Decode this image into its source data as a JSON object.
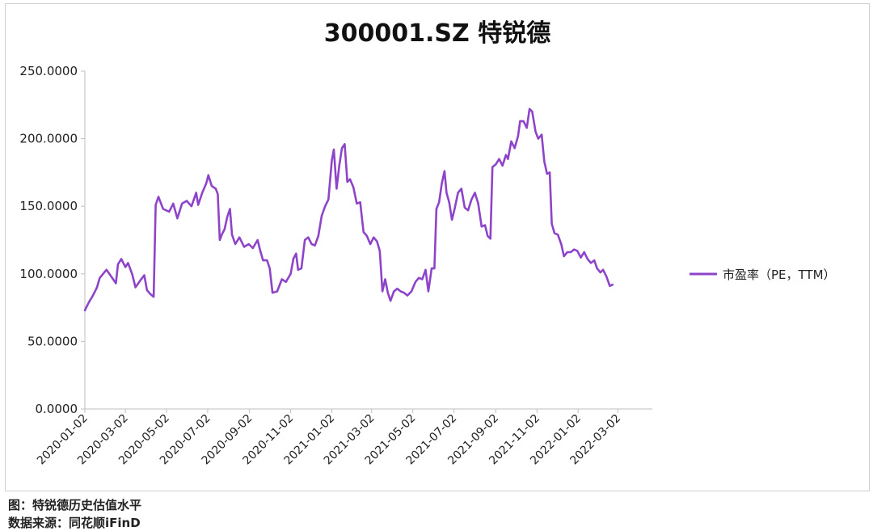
{
  "chart_data": {
    "type": "line",
    "title": "300001.SZ  特锐德",
    "ylim": [
      0,
      250
    ],
    "y_ticks": [
      "0.0000",
      "50.0000",
      "100.0000",
      "150.0000",
      "200.0000",
      "250.0000"
    ],
    "x_ticks": [
      "2020-01-02",
      "2020-03-02",
      "2020-05-02",
      "2020-07-02",
      "2020-09-02",
      "2020-11-02",
      "2021-01-02",
      "2021-03-02",
      "2021-05-02",
      "2021-07-02",
      "2021-09-02",
      "2021-11-02",
      "2022-01-02",
      "2022-03-02"
    ],
    "series": [
      {
        "name": "市盈率（PE，TTM）",
        "color": "#8e44c9",
        "points": [
          [
            "2020-01-02",
            73
          ],
          [
            "2020-01-08",
            79
          ],
          [
            "2020-01-14",
            84
          ],
          [
            "2020-01-20",
            90
          ],
          [
            "2020-01-24",
            97
          ],
          [
            "2020-02-03",
            103
          ],
          [
            "2020-02-10",
            98
          ],
          [
            "2020-02-17",
            93
          ],
          [
            "2020-02-20",
            107
          ],
          [
            "2020-02-25",
            111
          ],
          [
            "2020-03-02",
            105
          ],
          [
            "2020-03-06",
            108
          ],
          [
            "2020-03-12",
            100
          ],
          [
            "2020-03-17",
            90
          ],
          [
            "2020-03-24",
            95
          ],
          [
            "2020-03-30",
            99
          ],
          [
            "2020-04-03",
            88
          ],
          [
            "2020-04-08",
            85
          ],
          [
            "2020-04-13",
            83
          ],
          [
            "2020-04-16",
            151
          ],
          [
            "2020-04-20",
            157
          ],
          [
            "2020-04-27",
            148
          ],
          [
            "2020-05-06",
            146
          ],
          [
            "2020-05-12",
            152
          ],
          [
            "2020-05-18",
            141
          ],
          [
            "2020-05-25",
            152
          ],
          [
            "2020-06-01",
            154
          ],
          [
            "2020-06-08",
            150
          ],
          [
            "2020-06-15",
            160
          ],
          [
            "2020-06-18",
            151
          ],
          [
            "2020-06-24",
            160
          ],
          [
            "2020-06-30",
            167
          ],
          [
            "2020-07-03",
            173
          ],
          [
            "2020-07-08",
            165
          ],
          [
            "2020-07-14",
            163
          ],
          [
            "2020-07-17",
            159
          ],
          [
            "2020-07-20",
            125
          ],
          [
            "2020-07-23",
            129
          ],
          [
            "2020-07-27",
            133
          ],
          [
            "2020-07-31",
            142
          ],
          [
            "2020-08-04",
            148
          ],
          [
            "2020-08-07",
            129
          ],
          [
            "2020-08-12",
            122
          ],
          [
            "2020-08-18",
            127
          ],
          [
            "2020-08-25",
            120
          ],
          [
            "2020-09-01",
            122
          ],
          [
            "2020-09-07",
            119
          ],
          [
            "2020-09-14",
            125
          ],
          [
            "2020-09-18",
            117
          ],
          [
            "2020-09-22",
            110
          ],
          [
            "2020-09-28",
            110
          ],
          [
            "2020-10-02",
            104
          ],
          [
            "2020-10-06",
            86
          ],
          [
            "2020-10-13",
            87
          ],
          [
            "2020-10-20",
            96
          ],
          [
            "2020-10-26",
            94
          ],
          [
            "2020-11-02",
            100
          ],
          [
            "2020-11-06",
            111
          ],
          [
            "2020-11-10",
            115
          ],
          [
            "2020-11-13",
            103
          ],
          [
            "2020-11-18",
            104
          ],
          [
            "2020-11-23",
            125
          ],
          [
            "2020-11-28",
            127
          ],
          [
            "2020-12-03",
            122
          ],
          [
            "2020-12-08",
            121
          ],
          [
            "2020-12-13",
            128
          ],
          [
            "2020-12-18",
            143
          ],
          [
            "2020-12-23",
            150
          ],
          [
            "2020-12-28",
            155
          ],
          [
            "2021-01-02",
            184
          ],
          [
            "2021-01-05",
            192
          ],
          [
            "2021-01-09",
            163
          ],
          [
            "2021-01-13",
            180
          ],
          [
            "2021-01-17",
            193
          ],
          [
            "2021-01-21",
            196
          ],
          [
            "2021-01-25",
            168
          ],
          [
            "2021-01-29",
            170
          ],
          [
            "2021-02-03",
            164
          ],
          [
            "2021-02-08",
            152
          ],
          [
            "2021-02-13",
            153
          ],
          [
            "2021-02-18",
            131
          ],
          [
            "2021-02-23",
            128
          ],
          [
            "2021-02-28",
            122
          ],
          [
            "2021-03-05",
            127
          ],
          [
            "2021-03-10",
            124
          ],
          [
            "2021-03-14",
            117
          ],
          [
            "2021-03-18",
            87
          ],
          [
            "2021-03-22",
            96
          ],
          [
            "2021-03-26",
            86
          ],
          [
            "2021-03-30",
            80
          ],
          [
            "2021-04-04",
            87
          ],
          [
            "2021-04-09",
            89
          ],
          [
            "2021-04-14",
            87
          ],
          [
            "2021-04-19",
            86
          ],
          [
            "2021-04-24",
            84
          ],
          [
            "2021-04-30",
            87
          ],
          [
            "2021-05-06",
            94
          ],
          [
            "2021-05-11",
            97
          ],
          [
            "2021-05-16",
            96
          ],
          [
            "2021-05-21",
            103
          ],
          [
            "2021-05-25",
            87
          ],
          [
            "2021-05-30",
            104
          ],
          [
            "2021-06-03",
            104
          ],
          [
            "2021-06-06",
            148
          ],
          [
            "2021-06-10",
            153
          ],
          [
            "2021-06-14",
            167
          ],
          [
            "2021-06-18",
            176
          ],
          [
            "2021-06-21",
            160
          ],
          [
            "2021-06-25",
            153
          ],
          [
            "2021-06-29",
            140
          ],
          [
            "2021-07-03",
            148
          ],
          [
            "2021-07-08",
            160
          ],
          [
            "2021-07-13",
            163
          ],
          [
            "2021-07-18",
            149
          ],
          [
            "2021-07-23",
            147
          ],
          [
            "2021-07-28",
            155
          ],
          [
            "2021-08-02",
            160
          ],
          [
            "2021-08-07",
            152
          ],
          [
            "2021-08-12",
            135
          ],
          [
            "2021-08-17",
            136
          ],
          [
            "2021-08-21",
            128
          ],
          [
            "2021-08-25",
            126
          ],
          [
            "2021-08-28",
            179
          ],
          [
            "2021-09-02",
            181
          ],
          [
            "2021-09-07",
            185
          ],
          [
            "2021-09-12",
            180
          ],
          [
            "2021-09-17",
            188
          ],
          [
            "2021-09-20",
            185
          ],
          [
            "2021-09-25",
            198
          ],
          [
            "2021-09-30",
            193
          ],
          [
            "2021-10-05",
            202
          ],
          [
            "2021-10-08",
            213
          ],
          [
            "2021-10-13",
            213
          ],
          [
            "2021-10-18",
            208
          ],
          [
            "2021-10-22",
            222
          ],
          [
            "2021-10-26",
            220
          ],
          [
            "2021-10-31",
            205
          ],
          [
            "2021-11-04",
            200
          ],
          [
            "2021-11-09",
            203
          ],
          [
            "2021-11-13",
            183
          ],
          [
            "2021-11-17",
            174
          ],
          [
            "2021-11-21",
            175
          ],
          [
            "2021-11-24",
            137
          ],
          [
            "2021-11-28",
            130
          ],
          [
            "2021-12-03",
            129
          ],
          [
            "2021-12-08",
            122
          ],
          [
            "2021-12-12",
            113
          ],
          [
            "2021-12-17",
            116
          ],
          [
            "2021-12-22",
            116
          ],
          [
            "2021-12-27",
            118
          ],
          [
            "2022-01-01",
            117
          ],
          [
            "2022-01-06",
            112
          ],
          [
            "2022-01-11",
            116
          ],
          [
            "2022-01-16",
            111
          ],
          [
            "2022-01-21",
            108
          ],
          [
            "2022-01-26",
            110
          ],
          [
            "2022-01-30",
            104
          ],
          [
            "2022-02-04",
            101
          ],
          [
            "2022-02-08",
            103
          ],
          [
            "2022-02-13",
            98
          ],
          [
            "2022-02-18",
            91
          ],
          [
            "2022-02-22",
            92
          ]
        ]
      }
    ],
    "legend_position": "right"
  },
  "footer": {
    "caption": "图：特锐德历史估值水平",
    "source": "数据来源：同花顺iFinD"
  }
}
